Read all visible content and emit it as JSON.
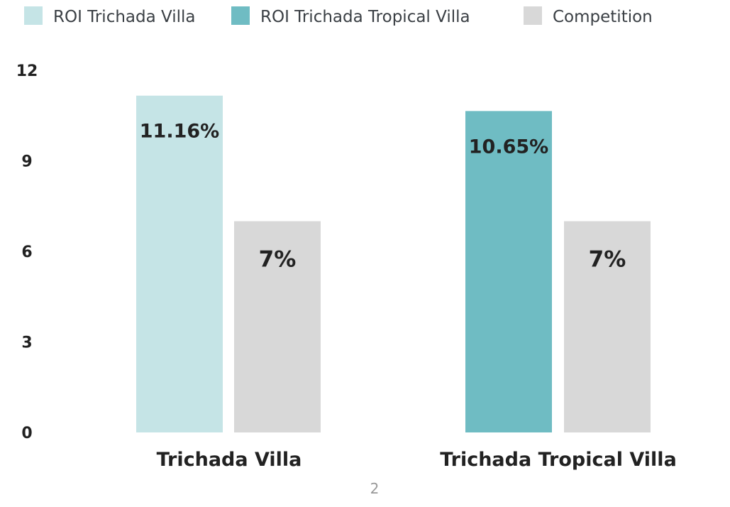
{
  "chart_data": {
    "type": "bar",
    "categories": [
      "Trichada Villa",
      "Trichada Tropical Villa"
    ],
    "series": [
      {
        "name": "ROI Trichada Villa",
        "values": [
          11.16,
          null
        ],
        "labels": [
          "11.16%",
          ""
        ],
        "color": "#c5e4e6"
      },
      {
        "name": "ROI Trichada Tropical Villa",
        "values": [
          null,
          10.65
        ],
        "labels": [
          "",
          "10.65%"
        ],
        "color": "#6fbcc3"
      },
      {
        "name": "Competition",
        "values": [
          7,
          7
        ],
        "labels": [
          "7%",
          "7%"
        ],
        "color": "#d8d8d8"
      }
    ],
    "yticks": [
      "0",
      "3",
      "6",
      "9",
      "12"
    ],
    "ylim": [
      0,
      12
    ],
    "grid": false,
    "legend": "top-left",
    "title": "",
    "xlabel": "",
    "ylabel": ""
  },
  "page_number": "2"
}
